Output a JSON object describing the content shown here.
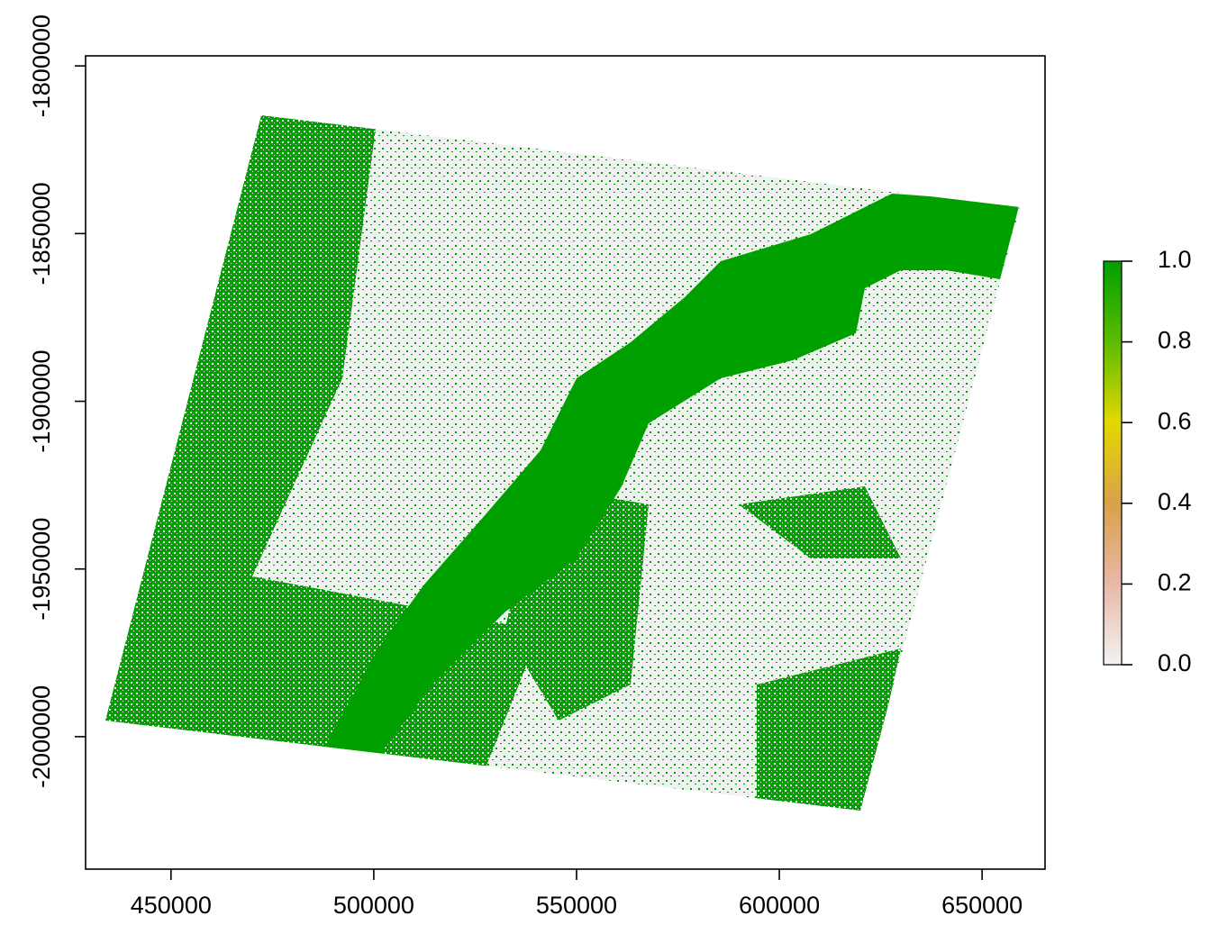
{
  "chart_data": {
    "type": "raster",
    "xlim": [
      428940,
      665520
    ],
    "xticks": [
      450000,
      500000,
      550000,
      600000,
      650000
    ],
    "ylim": [
      -2039500,
      -1797000
    ],
    "yticks": [
      -1800000,
      -1850000,
      -1900000,
      -1950000,
      -2000000
    ],
    "colorbar": {
      "lim": [
        0,
        1
      ],
      "colors": [
        "#f2f2f2",
        "#e8b8a8",
        "#d9a14a",
        "#e3d800",
        "#5cbc00",
        "#00a000"
      ],
      "ticks": [
        {
          "value": 0,
          "label": "0.0"
        },
        0.2,
        0.4,
        0.6,
        0.8,
        {
          "value": 1,
          "label": "1.0"
        }
      ]
    },
    "color": "#00a000",
    "background_color": "#f1f1f1"
  }
}
